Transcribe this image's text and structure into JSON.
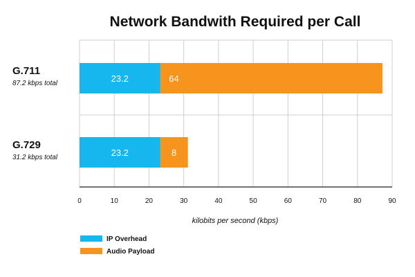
{
  "chart_data": {
    "type": "bar",
    "orientation": "horizontal",
    "stacked": true,
    "title": "Network Bandwith Required per Call",
    "xlabel": "kilobits per second (kbps)",
    "ylabel": "",
    "xlim": [
      0,
      90
    ],
    "xticks": [
      0,
      10,
      20,
      30,
      40,
      50,
      60,
      70,
      80,
      90
    ],
    "grid": true,
    "legend": "bottom-left",
    "categories": [
      {
        "name": "G.711",
        "subtitle": "87.2 kbps total"
      },
      {
        "name": "G.729",
        "subtitle": "31.2 kbps total"
      }
    ],
    "series": [
      {
        "name": "IP Overhead",
        "color": "#15b7ee",
        "values": [
          23.2,
          23.2
        ],
        "labels": [
          "23.2",
          "23.2"
        ]
      },
      {
        "name": "Audio Payload",
        "color": "#f7941d",
        "values": [
          64,
          8
        ],
        "labels": [
          "64",
          "8"
        ]
      }
    ]
  }
}
